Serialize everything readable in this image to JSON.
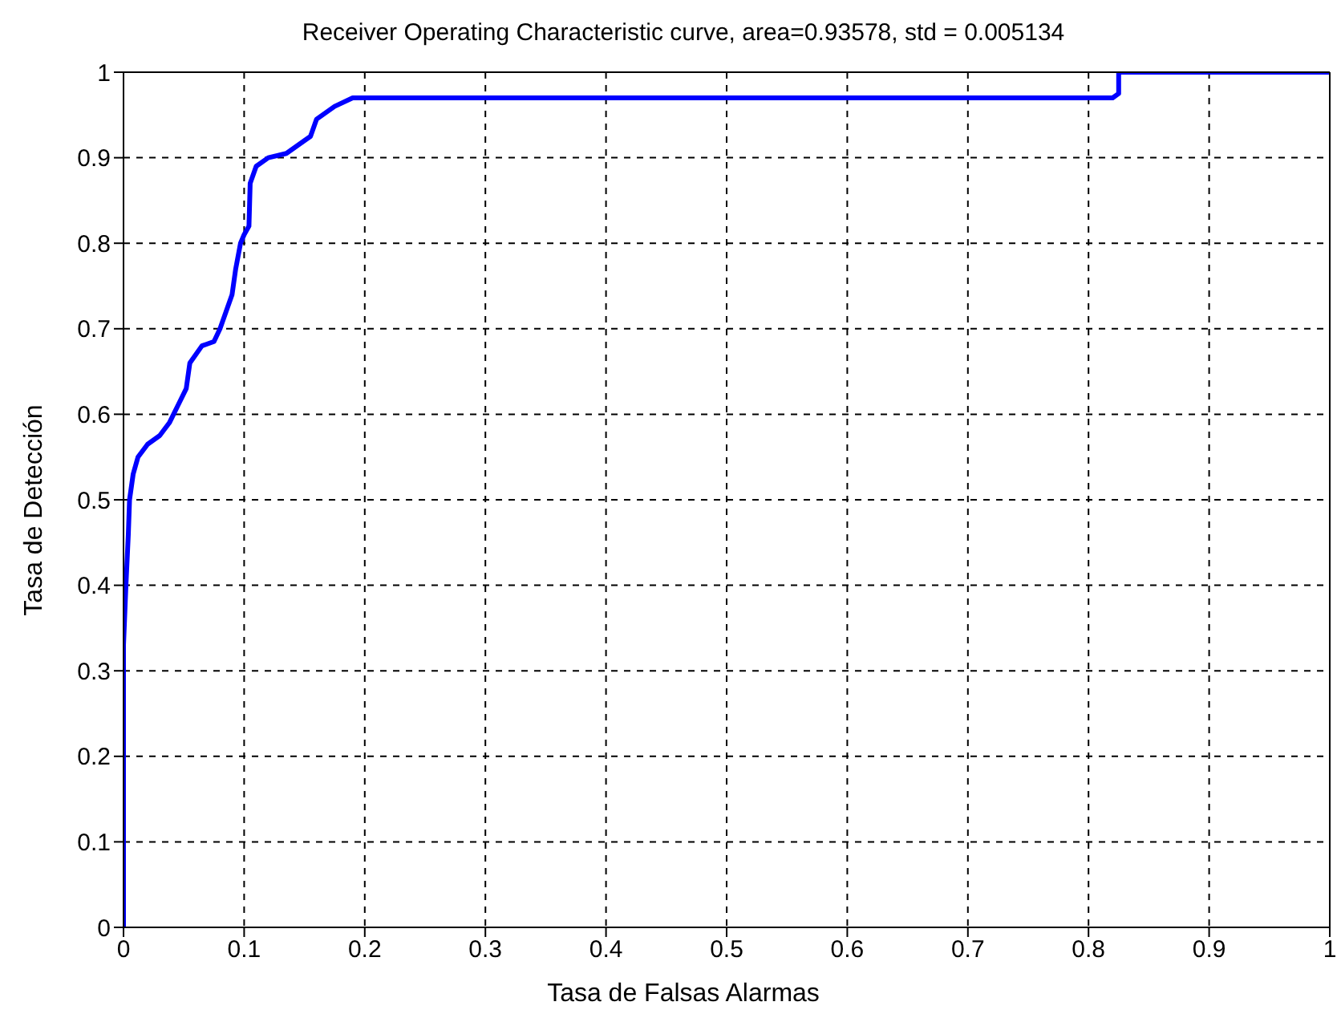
{
  "chart_data": {
    "type": "line",
    "title": "Receiver Operating Characteristic curve, area=0.93578, std = 0.005134",
    "xlabel": "Tasa de Falsas Alarmas",
    "ylabel": "Tasa de Detección",
    "series": [
      {
        "color": "#0000ff",
        "x": [
          0,
          0,
          0.002,
          0.004,
          0.005,
          0.008,
          0.012,
          0.02,
          0.03,
          0.038,
          0.045,
          0.052,
          0.055,
          0.065,
          0.075,
          0.08,
          0.085,
          0.09,
          0.093,
          0.097,
          0.1,
          0.104,
          0.105,
          0.11,
          0.12,
          0.135,
          0.15,
          0.155,
          0.16,
          0.175,
          0.19,
          0.2,
          0.82,
          0.825,
          0.825,
          1
        ],
        "values": [
          0,
          0.33,
          0.4,
          0.46,
          0.5,
          0.53,
          0.55,
          0.565,
          0.575,
          0.59,
          0.61,
          0.63,
          0.66,
          0.68,
          0.685,
          0.7,
          0.72,
          0.74,
          0.77,
          0.8,
          0.81,
          0.82,
          0.87,
          0.89,
          0.9,
          0.905,
          0.92,
          0.925,
          0.945,
          0.96,
          0.97,
          0.97,
          0.97,
          0.975,
          1,
          1
        ]
      }
    ],
    "xlim": [
      0,
      1
    ],
    "ylim": [
      0,
      1
    ],
    "xticks": [
      0,
      0.1,
      0.2,
      0.3,
      0.4,
      0.5,
      0.6,
      0.7,
      0.8,
      0.9,
      1
    ],
    "yticks": [
      0,
      0.1,
      0.2,
      0.3,
      0.4,
      0.5,
      0.6,
      0.7,
      0.8,
      0.9,
      1
    ],
    "grid": true,
    "marker": "none",
    "line_style": "solid"
  }
}
